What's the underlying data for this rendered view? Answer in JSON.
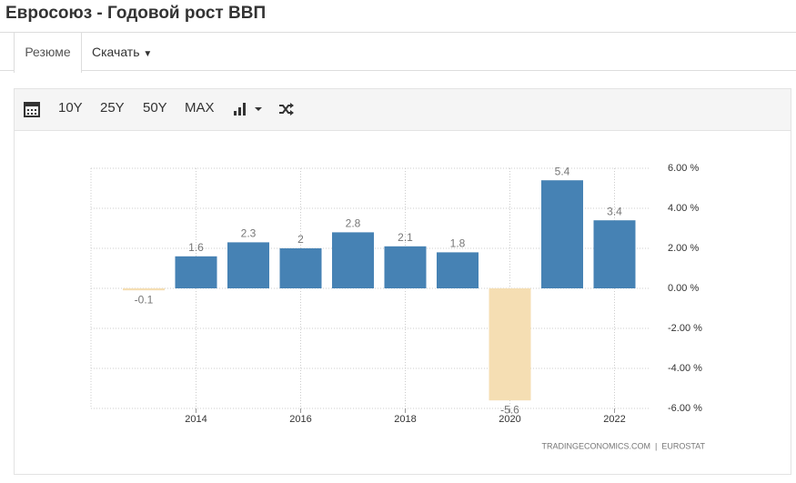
{
  "header": {
    "title": "Евросоюз - Годовой рост ВВП"
  },
  "tabs": [
    "Резюме",
    "Скачать"
  ],
  "toolbar": [
    "10Y",
    "25Y",
    "50Y",
    "MAX"
  ],
  "chart_data": {
    "type": "bar",
    "categories": [
      null,
      "2014",
      null,
      "2016",
      null,
      "2018",
      null,
      "2020",
      null,
      "2022"
    ],
    "values": [
      -0.1,
      1.6,
      2.3,
      2,
      2.8,
      2.1,
      1.8,
      -5.6,
      5.4,
      3.4
    ],
    "colors": [
      "#f5deb3",
      "#4682b4",
      "#4682b4",
      "#4682b4",
      "#4682b4",
      "#4682b4",
      "#4682b4",
      "#f5deb3",
      "#4682b4",
      "#4682b4"
    ],
    "ylim": [
      -6,
      6
    ],
    "yticks": [
      {
        "value": -6,
        "label": "-6.00 %"
      },
      {
        "value": -4,
        "label": "-4.00 %"
      },
      {
        "value": -2,
        "label": "-2.00 %"
      },
      {
        "value": 0,
        "label": "0.00 %"
      },
      {
        "value": 2,
        "label": "2.00 %"
      },
      {
        "value": 4,
        "label": "4.00 %"
      },
      {
        "value": 6,
        "label": "6.00 %"
      }
    ],
    "grid": true,
    "source": "TRADINGECONOMICS.COM  |  EUROSTAT"
  }
}
